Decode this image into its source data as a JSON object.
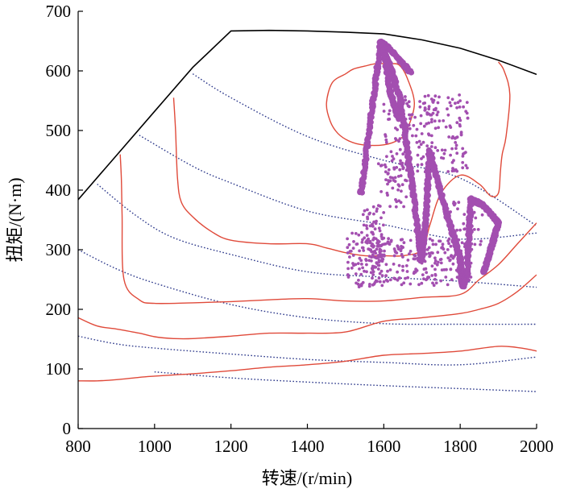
{
  "chart_data": {
    "type": "scatter",
    "xlabel": "转速/(r/min)",
    "ylabel": "扭矩/(N·m)",
    "xlim": [
      800,
      2000
    ],
    "ylim": [
      0,
      700
    ],
    "x_ticks": [
      800,
      1000,
      1200,
      1400,
      1600,
      1800,
      2000
    ],
    "y_ticks": [
      0,
      100,
      200,
      300,
      400,
      500,
      600,
      700
    ],
    "grid": false,
    "colors": {
      "max_torque": "#000000",
      "contour": "#e04a3a",
      "power": "#2e3a8c",
      "points": "#a34fb0"
    },
    "max_torque_curve": {
      "x": [
        800,
        900,
        1000,
        1100,
        1200,
        1300,
        1400,
        1500,
        1600,
        1700,
        1800,
        1900,
        2000
      ],
      "y": [
        384,
        458,
        532,
        606,
        667,
        668,
        667,
        665,
        662,
        652,
        638,
        618,
        594
      ]
    },
    "efficiency_contours": [
      {
        "x": [
          800,
          850,
          900,
          960,
          1000,
          1050,
          1100,
          1200,
          1300,
          1400,
          1500,
          1600,
          1700,
          1800,
          1900,
          1960,
          2000
        ],
        "y": [
          80,
          80,
          82,
          86,
          88,
          90,
          92,
          97,
          103,
          107,
          113,
          123,
          126,
          130,
          138,
          135,
          130
        ]
      },
      {
        "x": [
          800,
          850,
          900,
          960,
          1000,
          1050,
          1100,
          1200,
          1300,
          1400,
          1500,
          1600,
          1700,
          1800,
          1850,
          1900,
          1950,
          2000
        ],
        "y": [
          186,
          172,
          167,
          160,
          154,
          151,
          151,
          155,
          160,
          160,
          162,
          180,
          186,
          193,
          200,
          210,
          230,
          258
        ]
      },
      {
        "x": [
          910,
          913,
          915,
          920,
          960,
          1000,
          1100,
          1200,
          1300,
          1400,
          1500,
          1600,
          1700,
          1800,
          1850,
          1900,
          1950,
          2000
        ],
        "y": [
          460,
          420,
          360,
          250,
          216,
          210,
          211,
          213,
          216,
          218,
          214,
          214,
          220,
          225,
          250,
          275,
          310,
          345
        ]
      },
      {
        "x": [
          1050,
          1055,
          1060,
          1070,
          1100,
          1150,
          1200,
          1300,
          1400,
          1450,
          1500,
          1550,
          1600,
          1650,
          1700,
          1720,
          1750,
          1800,
          1850,
          1880,
          1900,
          1905,
          1910,
          1920,
          1930,
          1915,
          1900
        ],
        "y": [
          555,
          500,
          420,
          380,
          355,
          330,
          316,
          310,
          310,
          303,
          295,
          290,
          290,
          290,
          300,
          340,
          395,
          425,
          410,
          390,
          395,
          430,
          460,
          490,
          560,
          600,
          615
        ]
      },
      {
        "x": [
          1620,
          1580,
          1550,
          1520,
          1500,
          1465,
          1450,
          1460,
          1480,
          1510,
          1545,
          1600,
          1640,
          1660,
          1680,
          1660,
          1640,
          1620
        ],
        "y": [
          612,
          612,
          608,
          603,
          595,
          580,
          545,
          515,
          495,
          482,
          476,
          476,
          485,
          500,
          545,
          590,
          610,
          612
        ]
      }
    ],
    "iso_power_curves": [
      {
        "x": [
          1000,
          1200,
          1400,
          1600,
          1800,
          2000
        ],
        "y": [
          95,
          85,
          78,
          72,
          67,
          62
        ]
      },
      {
        "x": [
          800,
          900,
          1000,
          1200,
          1400,
          1600,
          1800,
          2000
        ],
        "y": [
          155,
          142,
          135,
          125,
          116,
          111,
          107,
          120
        ]
      },
      {
        "x": [
          800,
          900,
          1000,
          1200,
          1400,
          1600,
          1800,
          2000
        ],
        "y": [
          300,
          268,
          244,
          208,
          186,
          176,
          175,
          175
        ]
      },
      {
        "x": [
          850,
          950,
          1050,
          1200,
          1400,
          1600,
          1800,
          2000
        ],
        "y": [
          410,
          358,
          320,
          292,
          263,
          254,
          247,
          237
        ]
      },
      {
        "x": [
          960,
          1100,
          1200,
          1400,
          1600,
          1800,
          2000
        ],
        "y": [
          492,
          440,
          412,
          365,
          342,
          318,
          328
        ]
      },
      {
        "x": [
          1100,
          1200,
          1400,
          1600,
          1800,
          2000
        ],
        "y": [
          595,
          555,
          490,
          450,
          420,
          340
        ]
      }
    ],
    "operating_points": {
      "bands": [
        {
          "x": [
            1540,
            1570,
            1592
          ],
          "y": [
            395,
            540,
            648
          ]
        },
        {
          "x": [
            1592,
            1620,
            1645
          ],
          "y": [
            648,
            600,
            548
          ]
        },
        {
          "x": [
            1645,
            1672,
            1698
          ],
          "y": [
            548,
            420,
            282
          ]
        },
        {
          "x": [
            1698,
            1710,
            1720
          ],
          "y": [
            282,
            350,
            465
          ]
        },
        {
          "x": [
            1720,
            1760,
            1800
          ],
          "y": [
            465,
            370,
            285
          ]
        },
        {
          "x": [
            1800,
            1804,
            1808
          ],
          "y": [
            285,
            250,
            240
          ]
        },
        {
          "x": [
            1808,
            1818,
            1828
          ],
          "y": [
            240,
            260,
            385
          ]
        },
        {
          "x": [
            1828,
            1860,
            1900
          ],
          "y": [
            385,
            375,
            345
          ]
        },
        {
          "x": [
            1900,
            1880,
            1862
          ],
          "y": [
            345,
            300,
            262
          ]
        },
        {
          "x": [
            1592,
            1610,
            1670
          ],
          "y": [
            648,
            640,
            598
          ]
        },
        {
          "x": [
            1598,
            1618,
            1640
          ],
          "y": [
            645,
            560,
            520
          ]
        }
      ],
      "clusters": [
        {
          "x": [
            1500,
            1600
          ],
          "y": [
            235,
            330
          ],
          "count": 85
        },
        {
          "x": [
            1540,
            1600
          ],
          "y": [
            280,
            375
          ],
          "count": 60
        },
        {
          "x": [
            1560,
            1830
          ],
          "y": [
            240,
            320
          ],
          "count": 220
        },
        {
          "x": [
            1600,
            1820
          ],
          "y": [
            430,
            560
          ],
          "count": 200
        },
        {
          "x": [
            1580,
            1660
          ],
          "y": [
            370,
            450
          ],
          "count": 45
        },
        {
          "x": [
            1760,
            1860
          ],
          "y": [
            300,
            380
          ],
          "count": 40
        }
      ]
    }
  }
}
